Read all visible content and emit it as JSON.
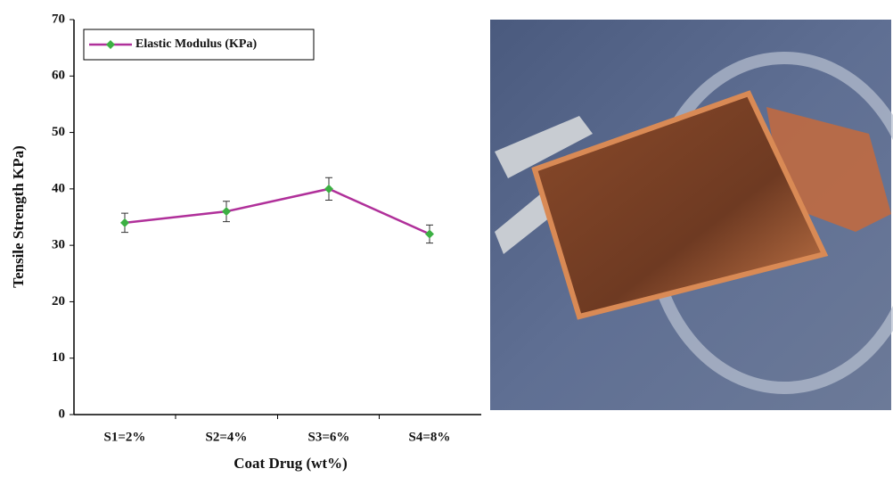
{
  "chart_data": {
    "type": "line",
    "xlabel": "Coat Drug (wt%)",
    "ylabel": "Tensile Strength KPa)",
    "categories": [
      "S1=2%",
      "S2=4%",
      "S3=6%",
      "S4=8%"
    ],
    "series": [
      {
        "name": "Elastic Modulus (KPa)",
        "color": "#b0309a",
        "marker_color": "#3cb043",
        "values": [
          34,
          36,
          40,
          32
        ],
        "errors": [
          1.7,
          1.8,
          2,
          1.6
        ]
      }
    ],
    "ylim": [
      0,
      70
    ],
    "yticks": [
      0,
      10,
      20,
      30,
      40,
      50,
      60,
      70
    ],
    "legend": "top-left"
  }
}
